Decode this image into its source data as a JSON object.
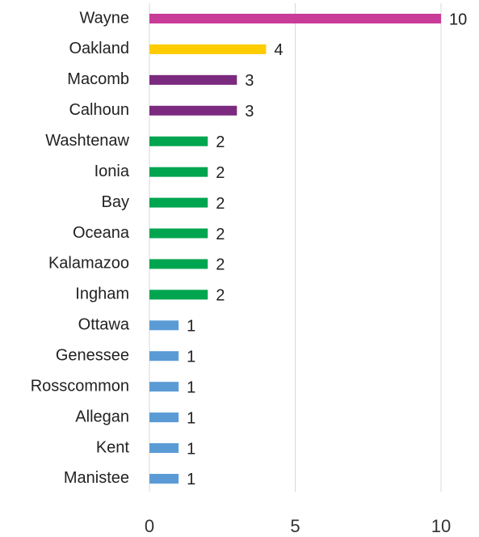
{
  "chart_data": {
    "type": "bar",
    "orientation": "horizontal",
    "categories": [
      "Wayne",
      "Oakland",
      "Macomb",
      "Calhoun",
      "Washtenaw",
      "Ionia",
      "Bay",
      "Oceana",
      "Kalamazoo",
      "Ingham",
      "Ottawa",
      "Genessee",
      "Rosscommon",
      "Allegan",
      "Kent",
      "Manistee"
    ],
    "values": [
      10,
      4,
      3,
      3,
      2,
      2,
      2,
      2,
      2,
      2,
      1,
      1,
      1,
      1,
      1,
      1
    ],
    "colors": [
      "#c83c98",
      "#ffcc00",
      "#7b2a7f",
      "#7b2a7f",
      "#00a550",
      "#00a550",
      "#00a550",
      "#00a550",
      "#00a550",
      "#00a550",
      "#5b9bd5",
      "#5b9bd5",
      "#5b9bd5",
      "#5b9bd5",
      "#5b9bd5",
      "#5b9bd5"
    ],
    "xlim": [
      0,
      10
    ],
    "xticks": [
      0,
      5,
      10
    ],
    "grid": true
  }
}
